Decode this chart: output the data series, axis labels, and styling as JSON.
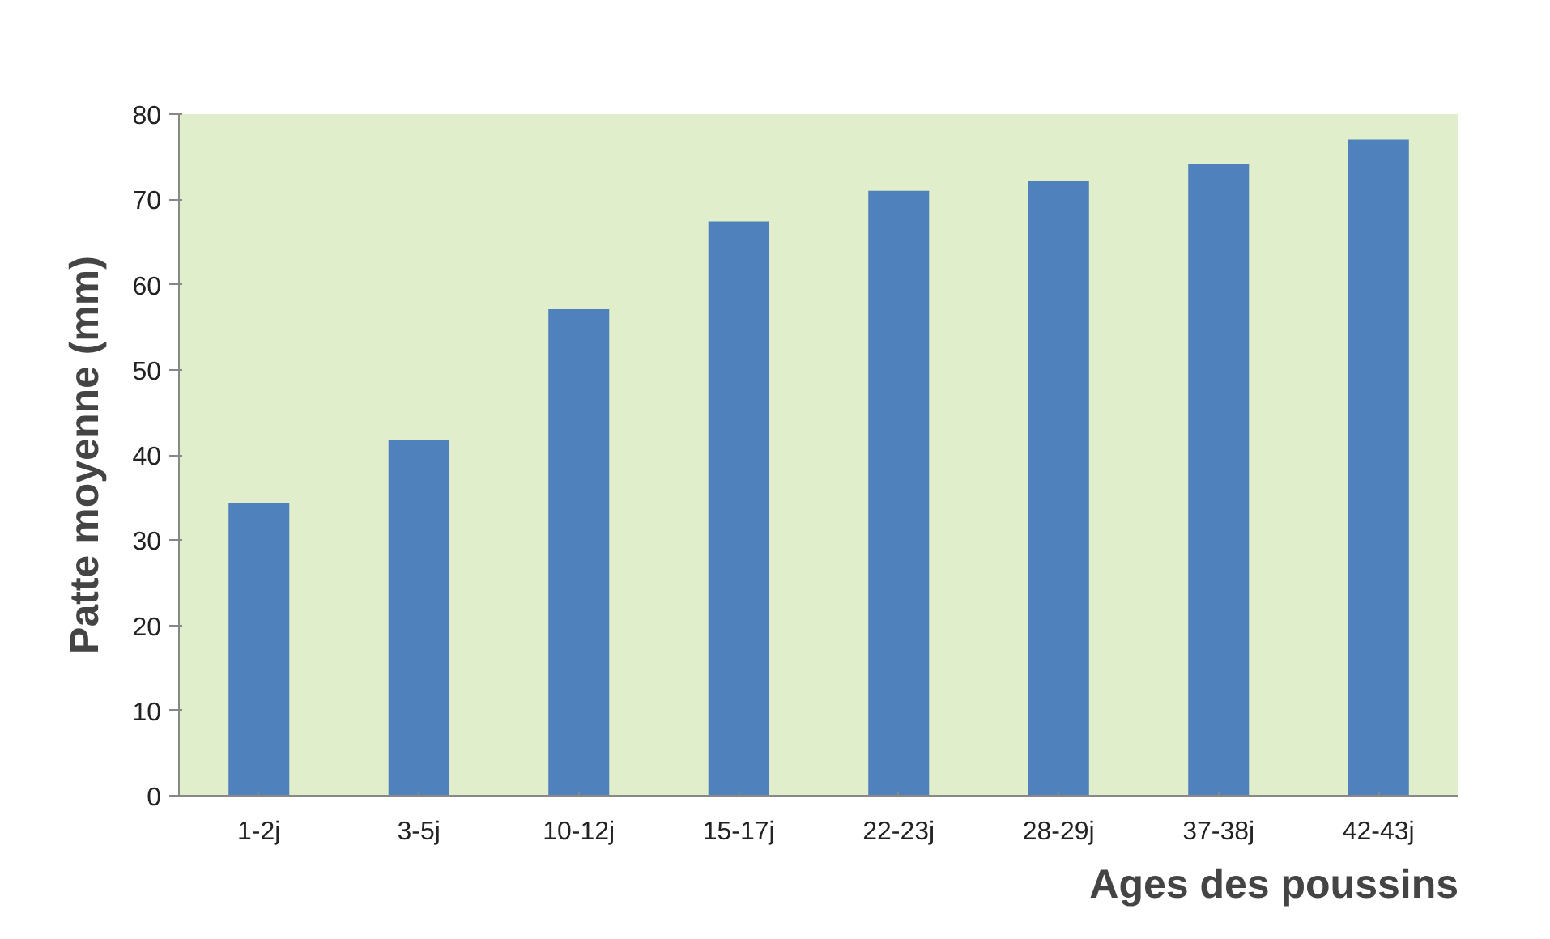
{
  "chart_data": {
    "type": "bar",
    "xlabel": "Ages des poussins",
    "ylabel": "Patte moyenne (mm)",
    "categories": [
      "1-2j",
      "3-5j",
      "10-12j",
      "15-17j",
      "22-23j",
      "28-29j",
      "37-38j",
      "42-43j"
    ],
    "values": [
      34.4,
      41.7,
      57.1,
      67.4,
      71,
      72.2,
      74.2,
      77
    ],
    "color": "#4f81bd",
    "ylim": [
      0,
      80
    ],
    "yticks": [
      0,
      10,
      20,
      30,
      40,
      50,
      60,
      70,
      80
    ],
    "grid": false
  }
}
